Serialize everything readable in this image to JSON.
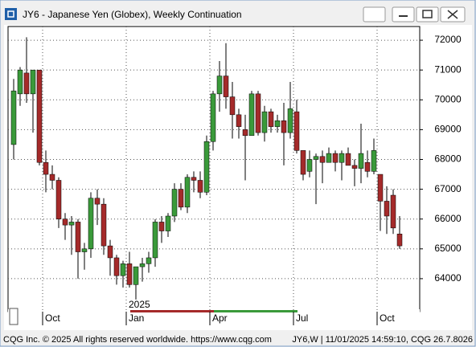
{
  "window": {
    "title": "JY6 - Japanese Yen (Globex), Weekly Continuation",
    "footer_left": "CQG Inc. © 2025 All rights reserved worldwide.  https://www.cqg.com",
    "footer_right": "JY6,W | 11/01/2025 14:59:10, CQG 26.7.8026"
  },
  "chart_data": {
    "type": "candlestick",
    "categories": [
      null,
      null,
      null,
      null,
      null,
      "Oct",
      null,
      null,
      null,
      null,
      null,
      null,
      null,
      null,
      null,
      null,
      null,
      null,
      "Jan",
      null,
      null,
      null,
      null,
      null,
      null,
      null,
      null,
      null,
      null,
      null,
      null,
      "Apr",
      null,
      null,
      null,
      null,
      null,
      null,
      null,
      null,
      null,
      null,
      null,
      null,
      "Jul",
      null,
      null,
      null,
      null,
      null,
      null,
      null,
      null,
      null,
      null,
      null,
      null,
      "Oct",
      null,
      null,
      null
    ],
    "year_label": "2025",
    "open": [
      68500,
      70200,
      70900,
      70200,
      71000,
      67900,
      67500,
      67300,
      66000,
      65800,
      65900,
      64900,
      65000,
      66700,
      66500,
      65100,
      64700,
      64100,
      64500,
      63800,
      64400,
      64500,
      64700,
      65900,
      65600,
      66100,
      67000,
      66400,
      67400,
      67300,
      66900,
      68600,
      70200,
      70800,
      70100,
      69500,
      69000,
      68800,
      70200,
      68900,
      69600,
      69100,
      69300,
      68900,
      69600,
      68300,
      67600,
      68000,
      68100,
      67900,
      68200,
      67900,
      68200,
      67800,
      67700,
      67900,
      67600,
      67500,
      66600,
      66800,
      65500
    ],
    "high": [
      70700,
      71100,
      72100,
      71000,
      71000,
      68300,
      67800,
      67400,
      66200,
      66100,
      66000,
      65200,
      66900,
      67000,
      66700,
      65300,
      64800,
      64600,
      64900,
      64400,
      64700,
      64900,
      66000,
      66100,
      66200,
      67200,
      67200,
      67500,
      67600,
      67600,
      68800,
      70300,
      71300,
      71900,
      70600,
      69700,
      69500,
      70300,
      70300,
      69800,
      69700,
      69500,
      69900,
      70600,
      70000,
      68300,
      68300,
      68200,
      68300,
      68400,
      68300,
      68300,
      68400,
      68000,
      69200,
      68300,
      68700,
      67500,
      67100,
      67000,
      66100
    ],
    "low": [
      68000,
      69800,
      69900,
      68900,
      67800,
      66900,
      67000,
      65700,
      65300,
      64800,
      64000,
      64300,
      64700,
      65800,
      64800,
      64100,
      63800,
      63700,
      63700,
      63300,
      63900,
      64200,
      64400,
      65200,
      65400,
      65900,
      66300,
      66200,
      66900,
      66700,
      66800,
      68300,
      69600,
      69700,
      68700,
      68700,
      67300,
      68800,
      68800,
      68600,
      68900,
      68900,
      67800,
      68700,
      68200,
      67300,
      67400,
      66500,
      67200,
      67900,
      67600,
      67300,
      67800,
      67100,
      67200,
      67400,
      67500,
      65600,
      65500,
      65500,
      65000
    ],
    "close": [
      70300,
      71000,
      70200,
      71000,
      67900,
      67500,
      67300,
      66000,
      65800,
      65900,
      64900,
      65000,
      66700,
      66500,
      65100,
      64700,
      64100,
      64500,
      63800,
      64400,
      64500,
      64700,
      65900,
      65600,
      66100,
      67000,
      66400,
      67400,
      67300,
      66900,
      68600,
      70200,
      70800,
      70100,
      69500,
      69100,
      68800,
      70200,
      68900,
      69600,
      69100,
      69300,
      68900,
      69700,
      68300,
      67500,
      68000,
      68100,
      67900,
      68200,
      67900,
      68200,
      67800,
      67700,
      68200,
      67600,
      68300,
      66600,
      66100,
      65700,
      65100
    ],
    "up_color": "#3a9a3a",
    "down_color": "#a52a2a",
    "ylim": [
      62920,
      72460
    ],
    "yticks": [
      64000,
      65000,
      66000,
      67000,
      68000,
      69000,
      70000,
      71000,
      72000
    ],
    "grid": true
  }
}
